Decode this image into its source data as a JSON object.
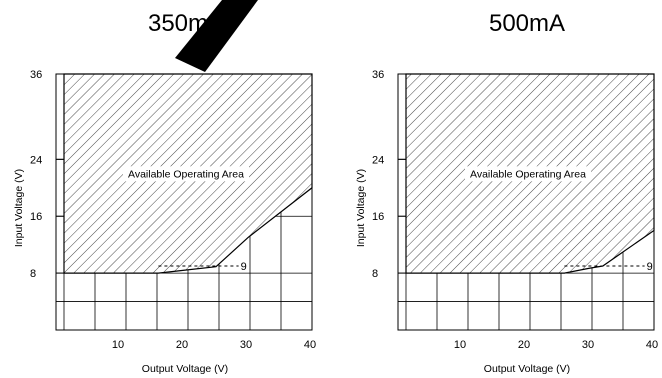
{
  "chart_data": [
    {
      "type": "area",
      "title": "350mA",
      "xlabel": "Output Voltage (V)",
      "ylabel": "Input Voltage (V)",
      "xlim": [
        0,
        40
      ],
      "ylim": [
        0,
        36
      ],
      "x_ticks": [
        10,
        20,
        30,
        40
      ],
      "x_tick_labels": [
        "10",
        "20",
        "30",
        "40"
      ],
      "y_ticks": [
        8,
        16,
        24,
        36
      ],
      "y_tick_labels": [
        "8",
        "16",
        "24",
        "36"
      ],
      "grid": true,
      "region_label": "Available Operating Area",
      "boundary": [
        {
          "x": 0,
          "y": 36
        },
        {
          "x": 40,
          "y": 36
        },
        {
          "x": 40,
          "y": 20
        },
        {
          "x": 30,
          "y": 13
        },
        {
          "x": 25,
          "y": 8.9
        },
        {
          "x": 20,
          "y": 8.4
        },
        {
          "x": 16,
          "y": 8
        },
        {
          "x": 0,
          "y": 8
        }
      ],
      "annotation": {
        "text": "9",
        "y": 9,
        "x_from": 16,
        "x_to": 29
      }
    },
    {
      "type": "area",
      "title": "500mA",
      "xlabel": "Output Voltage (V)",
      "ylabel": "Input Voltage (V)",
      "xlim": [
        0,
        40
      ],
      "ylim": [
        0,
        36
      ],
      "x_ticks": [
        10,
        20,
        30,
        40
      ],
      "x_tick_labels": [
        "10",
        "20",
        "30",
        "40"
      ],
      "y_ticks": [
        8,
        16,
        24,
        36
      ],
      "y_tick_labels": [
        "8",
        "16",
        "24",
        "36"
      ],
      "grid": true,
      "region_label": "Available Operating Area",
      "boundary": [
        {
          "x": 0,
          "y": 36
        },
        {
          "x": 40,
          "y": 36
        },
        {
          "x": 40,
          "y": 14
        },
        {
          "x": 32,
          "y": 9
        },
        {
          "x": 30,
          "y": 8.7
        },
        {
          "x": 26,
          "y": 8
        },
        {
          "x": 0,
          "y": 8
        }
      ],
      "annotation": {
        "text": "9",
        "y": 9,
        "x_from": 26,
        "x_to": 39
      }
    }
  ],
  "watermark_color": "#000000",
  "hatch_color": "#333333",
  "grid_color": "#000000",
  "text_color": "#000000"
}
